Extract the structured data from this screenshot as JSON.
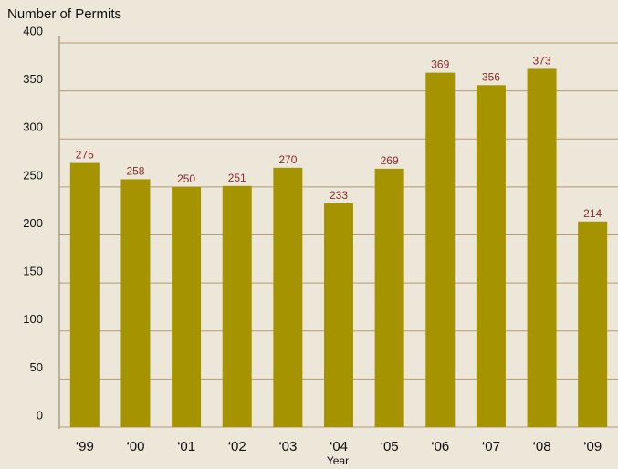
{
  "chart_data": {
    "type": "bar",
    "y_axis_label": "Number of Permits",
    "x_axis_label": "Year",
    "categories": [
      "‘99",
      "‘00",
      "‘01",
      "‘02",
      "‘03",
      "‘04",
      "‘05",
      "‘06",
      "‘07",
      "‘08",
      "‘09"
    ],
    "values": [
      275,
      258,
      250,
      251,
      270,
      233,
      269,
      369,
      356,
      373,
      214
    ],
    "color": "#a69300",
    "ylim": [
      0,
      400
    ],
    "yticks": [
      0,
      50,
      100,
      150,
      200,
      250,
      300,
      350,
      400
    ],
    "grid": true
  }
}
